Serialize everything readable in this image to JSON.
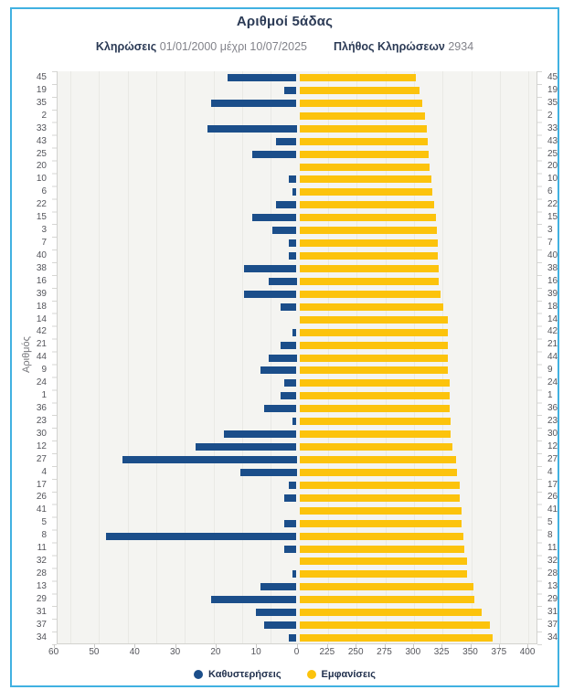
{
  "card": {
    "title": "Αριθμοί 5άδας",
    "subtitle": {
      "draws_label": "Κληρώσεις",
      "draws_range": "01/01/2000 μέχρι 10/07/2025",
      "count_label": "Πλήθος Κληρώσεων",
      "count_value": "2934"
    }
  },
  "colors": {
    "border": "#41b1e1",
    "delay_bar": "#1b4e8a",
    "appearance_bar": "#fcc30c",
    "plot_background": "#f4f4f1"
  },
  "chart_data": {
    "type": "bar",
    "orientation": "horizontal-diverging",
    "title": "Αριθμοί 5άδας",
    "ylabel": "Αριθμός",
    "legend": [
      {
        "name": "Καθυστερήσεις",
        "color": "#1b4e8a"
      },
      {
        "name": "Εμφανίσεις",
        "color": "#fcc30c"
      }
    ],
    "left_axis": {
      "label": "Καθυστερήσεις",
      "ticks": [
        60,
        50,
        40,
        30,
        20,
        10,
        0
      ],
      "min": 0,
      "max": 65,
      "direction": "leftward"
    },
    "right_axis": {
      "label": "Εμφανίσεις",
      "ticks": [
        225,
        250,
        275,
        300,
        325,
        350,
        375,
        400
      ],
      "min": 200,
      "max": 400,
      "direction": "rightward"
    },
    "rows": [
      {
        "number": 45,
        "delay": 17,
        "appearances": 302
      },
      {
        "number": 19,
        "delay": 3,
        "appearances": 305
      },
      {
        "number": 35,
        "delay": 21,
        "appearances": 307
      },
      {
        "number": 2,
        "delay": 0,
        "appearances": 310
      },
      {
        "number": 33,
        "delay": 22,
        "appearances": 311
      },
      {
        "number": 43,
        "delay": 5,
        "appearances": 312
      },
      {
        "number": 25,
        "delay": 11,
        "appearances": 313
      },
      {
        "number": 20,
        "delay": 0,
        "appearances": 314
      },
      {
        "number": 10,
        "delay": 2,
        "appearances": 315
      },
      {
        "number": 6,
        "delay": 1,
        "appearances": 316
      },
      {
        "number": 22,
        "delay": 5,
        "appearances": 318
      },
      {
        "number": 15,
        "delay": 11,
        "appearances": 319
      },
      {
        "number": 3,
        "delay": 6,
        "appearances": 320
      },
      {
        "number": 7,
        "delay": 2,
        "appearances": 321
      },
      {
        "number": 40,
        "delay": 2,
        "appearances": 321
      },
      {
        "number": 38,
        "delay": 13,
        "appearances": 322
      },
      {
        "number": 16,
        "delay": 7,
        "appearances": 322
      },
      {
        "number": 39,
        "delay": 13,
        "appearances": 323
      },
      {
        "number": 18,
        "delay": 4,
        "appearances": 326
      },
      {
        "number": 14,
        "delay": 0,
        "appearances": 330
      },
      {
        "number": 42,
        "delay": 1,
        "appearances": 330
      },
      {
        "number": 21,
        "delay": 4,
        "appearances": 330
      },
      {
        "number": 44,
        "delay": 7,
        "appearances": 330
      },
      {
        "number": 9,
        "delay": 9,
        "appearances": 330
      },
      {
        "number": 24,
        "delay": 3,
        "appearances": 331
      },
      {
        "number": 1,
        "delay": 4,
        "appearances": 331
      },
      {
        "number": 36,
        "delay": 8,
        "appearances": 331
      },
      {
        "number": 23,
        "delay": 1,
        "appearances": 332
      },
      {
        "number": 30,
        "delay": 18,
        "appearances": 332
      },
      {
        "number": 12,
        "delay": 25,
        "appearances": 334
      },
      {
        "number": 27,
        "delay": 43,
        "appearances": 337
      },
      {
        "number": 4,
        "delay": 14,
        "appearances": 338
      },
      {
        "number": 17,
        "delay": 2,
        "appearances": 340
      },
      {
        "number": 26,
        "delay": 3,
        "appearances": 340
      },
      {
        "number": 41,
        "delay": 0,
        "appearances": 342
      },
      {
        "number": 5,
        "delay": 3,
        "appearances": 342
      },
      {
        "number": 8,
        "delay": 47,
        "appearances": 343
      },
      {
        "number": 11,
        "delay": 3,
        "appearances": 344
      },
      {
        "number": 32,
        "delay": 0,
        "appearances": 346
      },
      {
        "number": 28,
        "delay": 1,
        "appearances": 346
      },
      {
        "number": 13,
        "delay": 9,
        "appearances": 352
      },
      {
        "number": 29,
        "delay": 21,
        "appearances": 353
      },
      {
        "number": 31,
        "delay": 10,
        "appearances": 359
      },
      {
        "number": 37,
        "delay": 8,
        "appearances": 366
      },
      {
        "number": 34,
        "delay": 2,
        "appearances": 369
      }
    ]
  }
}
